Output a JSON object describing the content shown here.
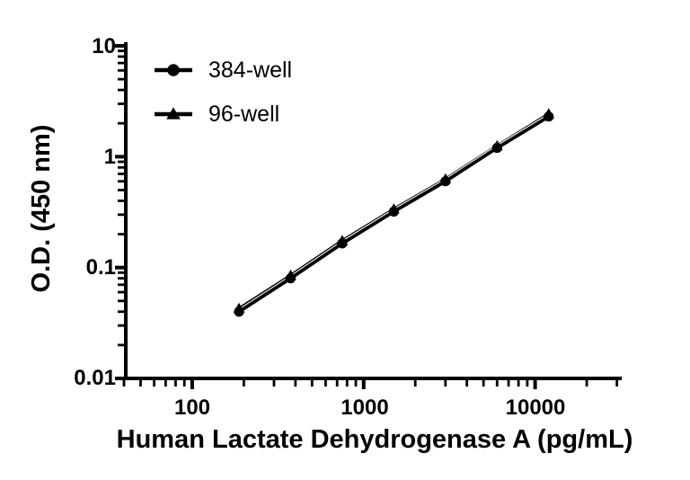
{
  "figure": {
    "background": "#ffffff",
    "foreground": "#000000"
  },
  "chart_data": {
    "type": "line",
    "title": "",
    "xlabel": "Human Lactate Dehydrogenase A (pg/mL)",
    "ylabel": "O.D. (450 nm)",
    "x_scale": "log",
    "y_scale": "log",
    "xlim": [
      40,
      32000
    ],
    "ylim": [
      0.01,
      10
    ],
    "grid": false,
    "x_ticks": [
      {
        "value": 100,
        "label": "100"
      },
      {
        "value": 1000,
        "label": "1000"
      },
      {
        "value": 10000,
        "label": "10000"
      }
    ],
    "y_ticks": [
      {
        "value": 10,
        "label": "10"
      },
      {
        "value": 1,
        "label": "1"
      },
      {
        "value": 0.1,
        "label": "0.1"
      },
      {
        "value": 0.01,
        "label": "0.01"
      }
    ],
    "series": [
      {
        "name": "384-well",
        "marker": "circle",
        "color": "#000000",
        "x": [
          187.5,
          375,
          750,
          1500,
          3000,
          6000,
          12000
        ],
        "y": [
          0.04,
          0.08,
          0.165,
          0.32,
          0.6,
          1.2,
          2.3
        ]
      },
      {
        "name": "96-well",
        "marker": "triangle",
        "color": "#000000",
        "x": [
          187.5,
          375,
          750,
          1500,
          3000,
          6000,
          12000
        ],
        "y": [
          0.0425,
          0.0845,
          0.174,
          0.335,
          0.625,
          1.245,
          2.42
        ]
      }
    ],
    "legend": {
      "position": "top-left-inside",
      "items": [
        {
          "label": "384-well",
          "marker": "circle"
        },
        {
          "label": "96-well",
          "marker": "triangle"
        }
      ]
    }
  }
}
